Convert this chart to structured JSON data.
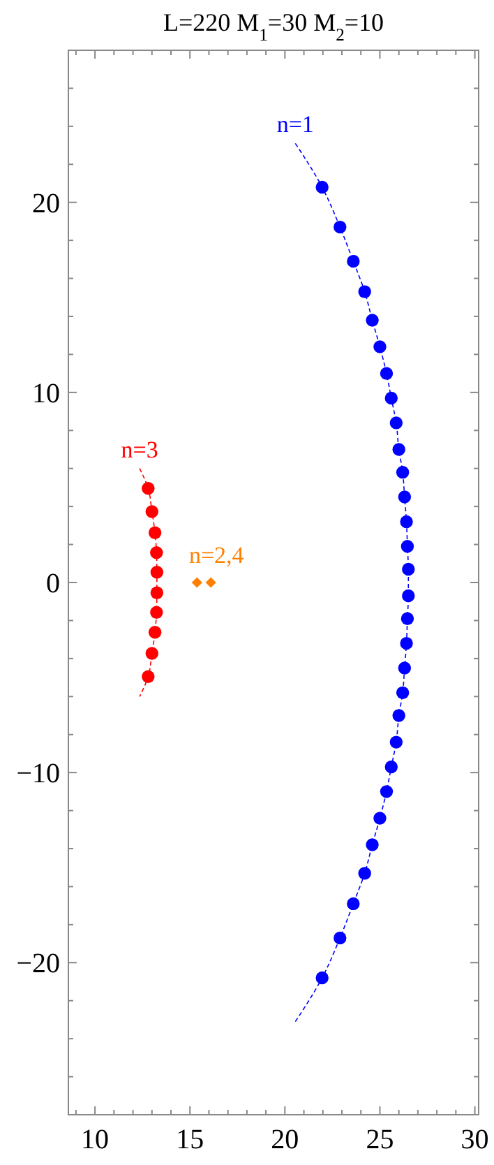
{
  "chart_data": {
    "type": "scatter",
    "title": "L=220 M$_{1}$=30 M$_{2}$=10",
    "xlim": [
      8.6,
      30.2
    ],
    "ylim": [
      -28,
      28
    ],
    "xticks": [
      {
        "value": 9,
        "label": null
      },
      10,
      {
        "value": 11,
        "label": null
      },
      {
        "value": 12,
        "label": null
      },
      {
        "value": 13,
        "label": null
      },
      {
        "value": 14,
        "label": null
      },
      15,
      {
        "value": 16,
        "label": null
      },
      {
        "value": 17,
        "label": null
      },
      {
        "value": 18,
        "label": null
      },
      {
        "value": 19,
        "label": null
      },
      20,
      {
        "value": 21,
        "label": null
      },
      {
        "value": 22,
        "label": null
      },
      {
        "value": 23,
        "label": null
      },
      {
        "value": 24,
        "label": null
      },
      25,
      {
        "value": 26,
        "label": null
      },
      {
        "value": 27,
        "label": null
      },
      {
        "value": 28,
        "label": null
      },
      {
        "value": 29,
        "label": null
      },
      30
    ],
    "yticks": [
      {
        "value": -26,
        "label": null
      },
      {
        "value": -24,
        "label": null
      },
      {
        "value": -22,
        "label": null
      },
      -20,
      {
        "value": -18,
        "label": null
      },
      {
        "value": -16,
        "label": null
      },
      {
        "value": -14,
        "label": null
      },
      {
        "value": -12,
        "label": null
      },
      -10,
      {
        "value": -8,
        "label": null
      },
      {
        "value": -6,
        "label": null
      },
      {
        "value": -4,
        "label": null
      },
      {
        "value": -2,
        "label": null
      },
      0,
      {
        "value": 2,
        "label": null
      },
      {
        "value": 4,
        "label": null
      },
      {
        "value": 6,
        "label": null
      },
      {
        "value": 8,
        "label": null
      },
      10,
      {
        "value": 12,
        "label": null
      },
      {
        "value": 14,
        "label": null
      },
      {
        "value": 16,
        "label": null
      },
      {
        "value": 18,
        "label": null
      },
      20,
      {
        "value": 22,
        "label": null
      },
      {
        "value": 24,
        "label": null
      },
      {
        "value": 26,
        "label": null
      }
    ],
    "grid": false,
    "series": [
      {
        "type": "line",
        "name": "n=1",
        "color": "#0000ff",
        "line_style": "dashed",
        "marker": "none",
        "x": [
          20.55,
          21.96,
          22.9,
          23.6,
          24.2,
          24.6,
          25.0,
          25.35,
          25.6,
          25.86,
          26.0,
          26.2,
          26.3,
          26.4,
          26.45,
          26.5,
          26.5,
          26.45,
          26.4,
          26.3,
          26.2,
          26.0,
          25.86,
          25.6,
          25.35,
          25.0,
          24.6,
          24.2,
          23.6,
          22.9,
          21.96,
          20.55
        ],
        "values": [
          23.1,
          20.8,
          18.7,
          16.9,
          15.3,
          13.8,
          12.4,
          11.0,
          9.7,
          8.4,
          7.0,
          5.8,
          4.5,
          3.2,
          1.9,
          0.7,
          -0.7,
          -1.9,
          -3.2,
          -4.5,
          -5.8,
          -7.0,
          -8.4,
          -9.7,
          -11.0,
          -12.4,
          -13.8,
          -15.3,
          -16.9,
          -18.7,
          -20.8,
          -23.1
        ]
      },
      {
        "color": "#0000ff",
        "marker": "circle",
        "x": [
          21.96,
          22.9,
          23.6,
          24.2,
          24.6,
          25.0,
          25.35,
          25.6,
          25.86,
          26.0,
          26.2,
          26.3,
          26.4,
          26.45,
          26.5,
          26.5,
          26.45,
          26.4,
          26.3,
          26.2,
          26.0,
          25.86,
          25.6,
          25.35,
          25.0,
          24.6,
          24.2,
          23.6,
          22.9,
          21.96
        ],
        "values": [
          20.8,
          18.7,
          16.9,
          15.3,
          13.8,
          12.4,
          11.0,
          9.7,
          8.4,
          7.0,
          5.8,
          4.5,
          3.2,
          1.9,
          0.7,
          -0.7,
          -1.9,
          -3.2,
          -4.5,
          -5.8,
          -7.0,
          -8.4,
          -9.7,
          -11.0,
          -12.4,
          -13.8,
          -15.3,
          -16.9,
          -18.7,
          -20.8
        ]
      },
      {
        "type": "line",
        "name": "n=3",
        "color": "#ff0000",
        "line_style": "dashed",
        "marker": "none",
        "x": [
          12.35,
          12.8,
          13.0,
          13.16,
          13.24,
          13.26,
          13.26,
          13.24,
          13.16,
          13.0,
          12.8,
          12.35
        ],
        "values": [
          6.0,
          4.95,
          3.73,
          2.62,
          1.57,
          0.54,
          -0.54,
          -1.57,
          -2.62,
          -3.73,
          -4.95,
          -6.0
        ]
      },
      {
        "color": "#ff0000",
        "marker": "circle",
        "x": [
          12.8,
          13.0,
          13.16,
          13.24,
          13.26,
          13.26,
          13.24,
          13.16,
          13.0,
          12.8
        ],
        "values": [
          4.95,
          3.73,
          2.62,
          1.57,
          0.54,
          -0.54,
          -1.57,
          -2.62,
          -3.73,
          -4.95
        ]
      },
      {
        "name": "n=2,4",
        "color": "#ff8000",
        "marker": "diamond",
        "x": [
          15.37,
          16.1
        ],
        "values": [
          0,
          0
        ]
      }
    ]
  }
}
